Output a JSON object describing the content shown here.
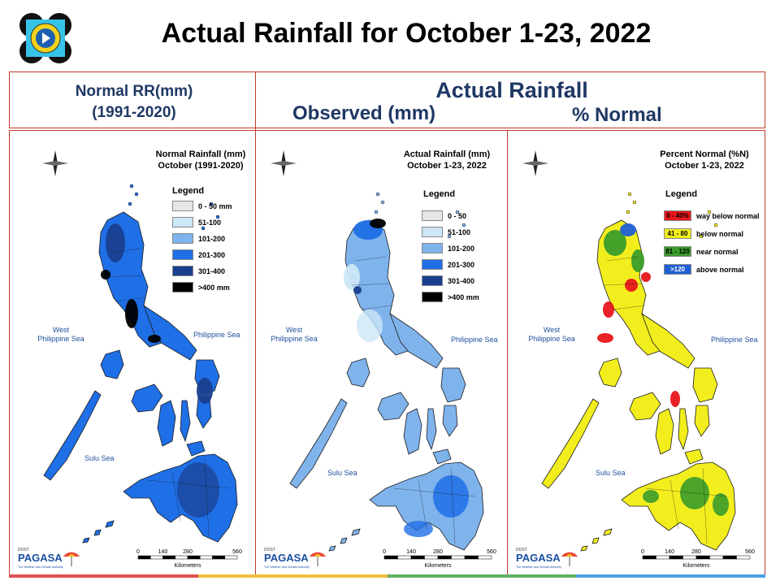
{
  "title": "Actual Rainfall for October 1-23, 2022",
  "headers": {
    "normal": [
      "Normal RR(mm)",
      "(1991-2020)"
    ],
    "actual": "Actual Rainfall",
    "observed": "Observed (mm)",
    "percent": "% Normal"
  },
  "panels": {
    "normal": {
      "title": [
        "Normal Rainfall (mm)",
        "October (1991-2020)"
      ],
      "legend_title": "Legend",
      "legend": [
        {
          "label": "0 - 50 mm",
          "color": "#e6e6e6"
        },
        {
          "label": "51-100",
          "color": "#cde7f7"
        },
        {
          "label": "101-200",
          "color": "#7fb3ec"
        },
        {
          "label": "201-300",
          "color": "#1f6fe6"
        },
        {
          "label": "301-400",
          "color": "#1a3f8f"
        },
        {
          "label": ">400 mm",
          "color": "#000000"
        }
      ]
    },
    "actual": {
      "title": [
        "Actual Rainfall (mm)",
        "October 1-23, 2022"
      ],
      "legend_title": "Legend",
      "legend": [
        {
          "label": "0 - 50",
          "color": "#e6e6e6"
        },
        {
          "label": "51-100",
          "color": "#cde7f7"
        },
        {
          "label": "101-200",
          "color": "#7fb3ec"
        },
        {
          "label": "201-300",
          "color": "#1f6fe6"
        },
        {
          "label": "301-400",
          "color": "#1a3f8f"
        },
        {
          "label": ">400 mm",
          "color": "#000000"
        }
      ]
    },
    "percent": {
      "title": [
        "Percent Normal (%N)",
        "October 1-23, 2022"
      ],
      "legend_title": "Legend",
      "legend": [
        {
          "swatch": "0 - 40%",
          "label": "way below normal",
          "color": "#e8161b"
        },
        {
          "swatch": "41 - 80",
          "label": "below normal",
          "color": "#f2ee1e"
        },
        {
          "swatch": "81 - 120",
          "label": "near normal",
          "color": "#3a9c2a"
        },
        {
          "swatch": ">120",
          "label": "above normal",
          "color": "#1f5fd6"
        }
      ]
    }
  },
  "seas": {
    "west": [
      "West",
      "Philippine Sea"
    ],
    "east": "Philippine Sea",
    "sulu": "Sulu Sea"
  },
  "compass": {
    "n": "N",
    "s": "S",
    "e": "E",
    "w": "W"
  },
  "scale": {
    "ticks": [
      "0",
      "140",
      "280",
      "560"
    ],
    "unit": "Kilometers"
  },
  "agency": {
    "name": "PAGASA",
    "tag": "DOST",
    "slogan": "The Weather and Climate Authority"
  }
}
